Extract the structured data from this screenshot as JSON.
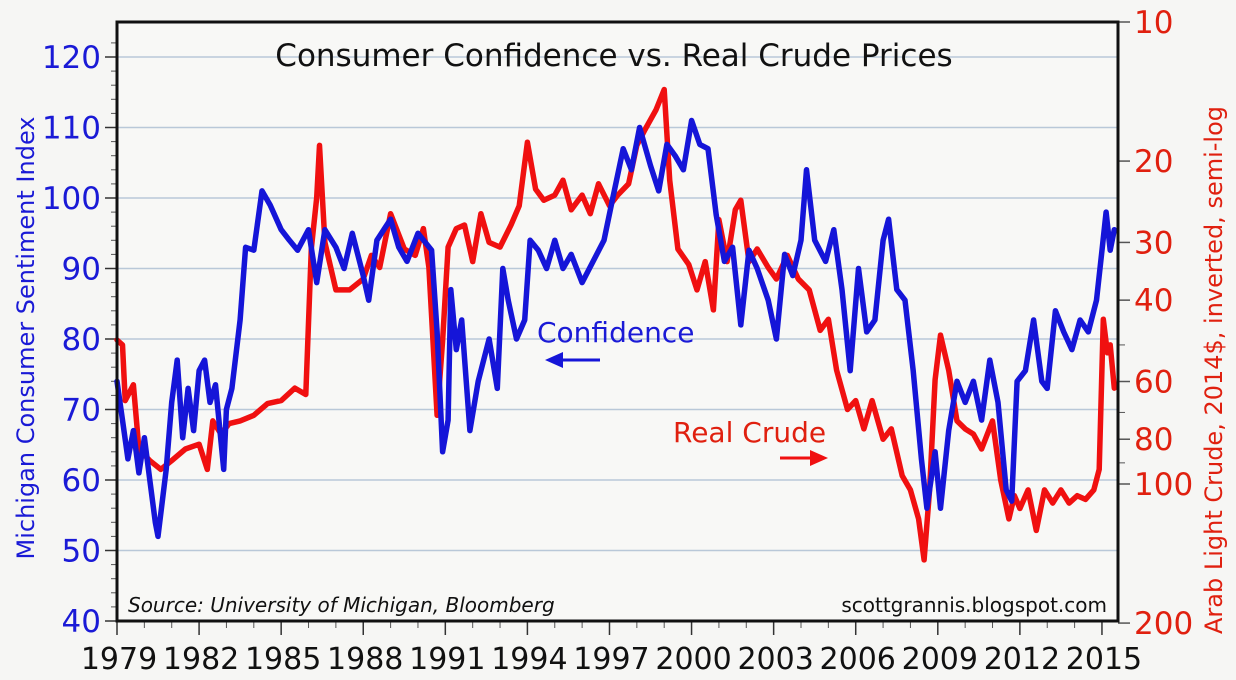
{
  "chart_data": {
    "type": "line",
    "title": "Consumer Confidence vs. Real Crude Prices",
    "xlabel": "",
    "ylabel_left": "Michigan Consumer Sentiment Index",
    "ylabel_right": "Arab Light Crude, 2014$, inverted, semi-log",
    "x_range": [
      1979,
      2015.6
    ],
    "x_ticks": [
      "1979",
      "1982",
      "1985",
      "1988",
      "1991",
      "1994",
      "1997",
      "2000",
      "2003",
      "2006",
      "2009",
      "2012",
      "2015"
    ],
    "ylim_left": [
      40,
      125
    ],
    "y_ticks_left": [
      "40",
      "50",
      "60",
      "70",
      "80",
      "90",
      "100",
      "110",
      "120"
    ],
    "ylim_right": [
      10,
      200
    ],
    "y_right_scale": "log-inverted",
    "y_ticks_right": [
      "10",
      "20",
      "30",
      "40",
      "60",
      "80",
      "100",
      "200"
    ],
    "grid": true,
    "source_note": "Source:  University of Michigan, Bloomberg",
    "credit": "scottgrannis.blogspot.com",
    "annotations": [
      {
        "text": "Confidence",
        "arrow": "left",
        "series": "Confidence"
      },
      {
        "text": "Real Crude",
        "arrow": "right",
        "series": "Real Crude"
      }
    ],
    "colors": {
      "confidence": "#1515d8",
      "crude": "#f01010",
      "grid": "#b9c8d8"
    },
    "series": [
      {
        "name": "Confidence",
        "axis": "left",
        "x": [
          1979.0,
          1979.2,
          1979.4,
          1979.6,
          1979.8,
          1980.0,
          1980.2,
          1980.4,
          1980.5,
          1980.8,
          1981.0,
          1981.2,
          1981.4,
          1981.6,
          1981.8,
          1982.0,
          1982.2,
          1982.4,
          1982.6,
          1982.9,
          1983.0,
          1983.2,
          1983.5,
          1983.7,
          1984.0,
          1984.3,
          1984.6,
          1985.0,
          1985.3,
          1985.6,
          1986.0,
          1986.3,
          1986.6,
          1987.0,
          1987.3,
          1987.6,
          1988.0,
          1988.2,
          1988.5,
          1989.0,
          1989.3,
          1989.6,
          1990.0,
          1990.5,
          1990.7,
          1990.9,
          1991.1,
          1991.2,
          1991.4,
          1991.6,
          1991.9,
          1992.2,
          1992.6,
          1992.9,
          1993.1,
          1993.3,
          1993.6,
          1993.9,
          1994.1,
          1994.4,
          1994.7,
          1995.0,
          1995.3,
          1995.6,
          1996.0,
          1996.4,
          1996.8,
          1997.1,
          1997.5,
          1997.8,
          1998.1,
          1998.5,
          1998.8,
          1999.1,
          1999.4,
          1999.7,
          2000.0,
          2000.3,
          2000.6,
          2000.9,
          2001.2,
          2001.5,
          2001.8,
          2002.1,
          2002.4,
          2002.8,
          2003.1,
          2003.4,
          2003.7,
          2004.0,
          2004.2,
          2004.5,
          2004.9,
          2005.2,
          2005.5,
          2005.8,
          2006.1,
          2006.4,
          2006.7,
          2007.0,
          2007.2,
          2007.5,
          2007.8,
          2008.1,
          2008.4,
          2008.6,
          2008.9,
          2009.1,
          2009.4,
          2009.7,
          2010.0,
          2010.3,
          2010.6,
          2010.9,
          2011.2,
          2011.5,
          2011.7,
          2011.9,
          2012.2,
          2012.5,
          2012.8,
          2013.0,
          2013.3,
          2013.6,
          2013.9,
          2014.2,
          2014.5,
          2014.8,
          2015.0,
          2015.15,
          2015.3,
          2015.45
        ],
        "values": [
          74,
          68.5,
          63,
          67,
          61,
          66,
          60,
          54,
          52,
          61.5,
          71,
          77,
          66,
          73,
          67,
          75.5,
          77,
          71,
          73.5,
          61.5,
          70,
          73,
          82.7,
          93,
          92.6,
          101,
          99,
          95.5,
          94,
          92.6,
          95.5,
          88,
          95.5,
          93,
          90,
          95,
          89,
          85.5,
          94,
          97,
          93,
          91,
          95,
          92.6,
          81,
          64,
          68.5,
          87,
          78.5,
          82.7,
          67,
          74,
          80,
          73,
          90,
          85.5,
          80,
          82.7,
          94,
          92.6,
          90,
          94,
          90,
          92,
          88,
          91,
          94,
          99.6,
          107,
          104,
          110,
          104.6,
          101,
          107.6,
          106,
          104,
          111,
          107.6,
          107,
          97.6,
          91,
          93,
          82,
          92.6,
          90,
          85.5,
          80,
          92,
          89,
          94,
          104,
          94,
          91,
          95.5,
          87,
          75.5,
          90,
          81,
          82.7,
          94,
          97,
          87,
          85.5,
          75.5,
          63,
          56,
          64,
          56,
          67,
          74,
          71,
          74,
          68.5,
          77,
          71,
          58.6,
          57,
          74,
          75.5,
          82.7,
          74,
          73,
          84,
          81,
          78.5,
          82.7,
          81,
          85.5,
          92.6,
          98,
          92.6,
          95.5
        ]
      },
      {
        "name": "Real Crude",
        "axis": "right",
        "unit": "2014$ per barrel",
        "x": [
          1979.0,
          1979.2,
          1979.3,
          1979.6,
          1979.8,
          1980.2,
          1980.6,
          1981.0,
          1981.5,
          1982.0,
          1982.3,
          1982.5,
          1982.8,
          1983.1,
          1983.5,
          1984.0,
          1984.5,
          1985.0,
          1985.5,
          1985.9,
          1986.1,
          1986.3,
          1986.4,
          1986.6,
          1987.0,
          1987.5,
          1988.0,
          1988.3,
          1988.6,
          1989.0,
          1989.5,
          1989.9,
          1990.2,
          1990.4,
          1990.7,
          1990.9,
          1991.1,
          1991.4,
          1991.7,
          1992.0,
          1992.3,
          1992.6,
          1993.0,
          1993.4,
          1993.7,
          1994.0,
          1994.3,
          1994.6,
          1995.0,
          1995.3,
          1995.6,
          1996.0,
          1996.3,
          1996.6,
          1997.0,
          1997.3,
          1997.7,
          1998.0,
          1998.3,
          1998.7,
          1999.0,
          1999.2,
          1999.5,
          1999.9,
          2000.2,
          2000.5,
          2000.8,
          2001.0,
          2001.3,
          2001.6,
          2001.8,
          2002.1,
          2002.4,
          2002.8,
          2003.1,
          2003.5,
          2003.9,
          2004.3,
          2004.7,
          2005.0,
          2005.3,
          2005.7,
          2006.0,
          2006.3,
          2006.6,
          2007.0,
          2007.3,
          2007.7,
          2008.0,
          2008.3,
          2008.5,
          2008.7,
          2008.9,
          2009.1,
          2009.4,
          2009.7,
          2010.0,
          2010.3,
          2010.6,
          2011.0,
          2011.3,
          2011.6,
          2011.8,
          2012.0,
          2012.3,
          2012.6,
          2012.9,
          2013.2,
          2013.5,
          2013.8,
          2014.1,
          2014.4,
          2014.7,
          2014.9,
          2015.05,
          2015.2,
          2015.3,
          2015.45
        ],
        "values": [
          48.8,
          50,
          66,
          61,
          84,
          89,
          93,
          89,
          84,
          82,
          93,
          73,
          78,
          74,
          73,
          71,
          67,
          66,
          62,
          64,
          31,
          24,
          18.5,
          30,
          38,
          38,
          36,
          32,
          34,
          26,
          31,
          32,
          28,
          34,
          71,
          49,
          30.7,
          28,
          27.5,
          33,
          26,
          30,
          30.7,
          27.5,
          25,
          18.2,
          23,
          24.3,
          23.7,
          22,
          25.5,
          23.7,
          26,
          22.4,
          25,
          23.7,
          22.4,
          18.5,
          17.1,
          15.5,
          14,
          22,
          31,
          33.5,
          38,
          33,
          42,
          26.8,
          33,
          25.5,
          24.3,
          33,
          31,
          34,
          36,
          32,
          36,
          38,
          46.5,
          44,
          56.7,
          69,
          66,
          76,
          66,
          80,
          76,
          96,
          103,
          119,
          146,
          103,
          59.5,
          47.6,
          56.7,
          73,
          76,
          78,
          84,
          73,
          98,
          119,
          106,
          113,
          103,
          126,
          103,
          110,
          103,
          110,
          106,
          108,
          103,
          93,
          44,
          52,
          50,
          62
        ]
      }
    ]
  }
}
